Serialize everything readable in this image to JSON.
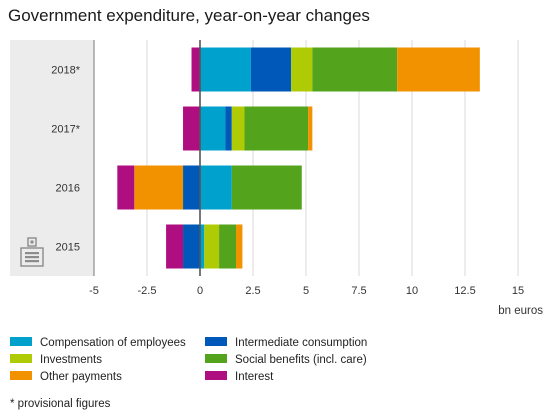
{
  "chart_data": {
    "type": "bar",
    "orientation": "horizontal",
    "stacked": true,
    "title": "Government expenditure, year-on-year changes",
    "xlabel": "bn euros",
    "xlim": [
      -5,
      15
    ],
    "xticks": [
      -5,
      -2.5,
      0,
      2.5,
      5,
      7.5,
      10,
      12.5,
      15
    ],
    "xtick_labels": [
      "-5",
      "-2.5",
      "0",
      "2.5",
      "5",
      "7.5",
      "10",
      "12.5",
      "15"
    ],
    "grid": "vertical",
    "categories": [
      "2018*",
      "2017*",
      "2016",
      "2015"
    ],
    "series": [
      {
        "name": "Compensation of employees",
        "color": "#00a1cd",
        "values": [
          2.4,
          1.2,
          1.5,
          0.2
        ]
      },
      {
        "name": "Intermediate consumption",
        "color": "#0058b8",
        "values": [
          1.9,
          0.3,
          -0.8,
          -0.8
        ]
      },
      {
        "name": "Investments",
        "color": "#afcb05",
        "values": [
          1.0,
          0.6,
          0.0,
          0.7
        ]
      },
      {
        "name": "Social benefits (incl. care)",
        "color": "#53a31d",
        "values": [
          4.0,
          3.0,
          3.3,
          0.8
        ]
      },
      {
        "name": "Other payments",
        "color": "#f39200",
        "values": [
          3.9,
          0.2,
          -2.3,
          0.3
        ]
      },
      {
        "name": "Interest",
        "color": "#af0e80",
        "values": [
          -0.4,
          -0.8,
          -0.8,
          -0.8
        ]
      }
    ],
    "legend_position": "bottom",
    "footnote": "* provisional figures"
  },
  "colors": {
    "zero_line": "#555555",
    "grid": "#d9d9d9",
    "category_panel": "#ececec"
  },
  "logo": "cbs-logo-icon"
}
